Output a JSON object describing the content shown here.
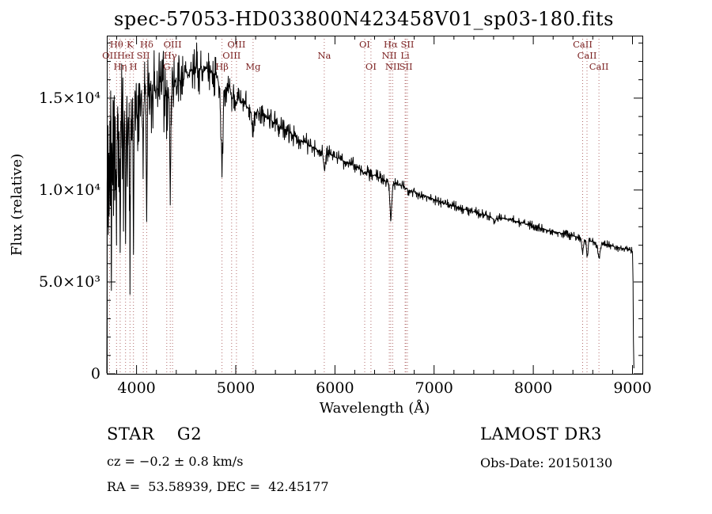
{
  "chart_data": {
    "type": "line",
    "title": "spec-57053-HD033800N423458V01_sp03-180.fits",
    "xlabel": "Wavelength (Å)",
    "ylabel": "Flux (relative)",
    "xlim": [
      3700,
      9100
    ],
    "ylim": [
      0,
      18400
    ],
    "grid": false,
    "frame": true,
    "legend": "none",
    "x_ticks": [
      {
        "value": 4000,
        "label": "4000"
      },
      {
        "value": 5000,
        "label": "5000"
      },
      {
        "value": 6000,
        "label": "6000"
      },
      {
        "value": 7000,
        "label": "7000"
      },
      {
        "value": 8000,
        "label": "8000"
      },
      {
        "value": 9000,
        "label": "9000"
      }
    ],
    "x_minor_step": 200,
    "y_ticks": [
      {
        "value": 0,
        "label": "0"
      },
      {
        "value": 5000,
        "label": "5.0×10³"
      },
      {
        "value": 10000,
        "label": "1.0×10⁴"
      },
      {
        "value": 15000,
        "label": "1.5×10⁴"
      }
    ],
    "y_minor_step": 1000,
    "curve_color": "#000000",
    "line_marker_color": "#b26b6b",
    "line_label_color": "#7a1f1f",
    "label_rows_y": [
      60,
      74,
      88
    ],
    "spectral_lines": [
      {
        "label": "Hθ",
        "wavelength": 3798,
        "row": 1
      },
      {
        "label": "K",
        "wavelength": 3934,
        "row": 1
      },
      {
        "label": "Hδ",
        "wavelength": 4102,
        "row": 1
      },
      {
        "label": "OIII",
        "wavelength": 4363,
        "row": 1
      },
      {
        "label": "OIII",
        "wavelength": 5007,
        "row": 1
      },
      {
        "label": "OI",
        "wavelength": 6300,
        "row": 1
      },
      {
        "label": "Hα",
        "wavelength": 6563,
        "row": 1
      },
      {
        "label": "SII",
        "wavelength": 6731,
        "row": 1
      },
      {
        "label": "CaII",
        "wavelength": 8498,
        "row": 1
      },
      {
        "label": "OII",
        "wavelength": 3727,
        "row": 2
      },
      {
        "label": "HeI",
        "wavelength": 3889,
        "row": 2
      },
      {
        "label": "SII",
        "wavelength": 4068,
        "row": 2
      },
      {
        "label": "Hγ",
        "wavelength": 4340,
        "row": 2
      },
      {
        "label": "OIII",
        "wavelength": 4959,
        "row": 2
      },
      {
        "label": "Na",
        "wavelength": 5893,
        "row": 2
      },
      {
        "label": "NII",
        "wavelength": 6548,
        "row": 2
      },
      {
        "label": "Li",
        "wavelength": 6708,
        "row": 2
      },
      {
        "label": "CaII",
        "wavelength": 8542,
        "row": 2
      },
      {
        "label": "Hη",
        "wavelength": 3835,
        "row": 3
      },
      {
        "label": "H",
        "wavelength": 3969,
        "row": 3
      },
      {
        "label": "G",
        "wavelength": 4305,
        "row": 3
      },
      {
        "label": "Hβ",
        "wavelength": 4861,
        "row": 3
      },
      {
        "label": "Mg",
        "wavelength": 5175,
        "row": 3
      },
      {
        "label": "OI",
        "wavelength": 6363,
        "row": 3
      },
      {
        "label": "NII",
        "wavelength": 6583,
        "row": 3
      },
      {
        "label": "SII",
        "wavelength": 6716,
        "row": 3
      },
      {
        "label": "CaII",
        "wavelength": 8662,
        "row": 3
      }
    ],
    "series": [
      {
        "name": "flux",
        "anchors": [
          [
            3700,
            300
          ],
          [
            3702,
            5200
          ],
          [
            3705,
            11000
          ],
          [
            3708,
            8000
          ],
          [
            3712,
            13600
          ],
          [
            3716,
            7500
          ],
          [
            3720,
            12200
          ],
          [
            3724,
            8600
          ],
          [
            3727,
            10500
          ],
          [
            3731,
            13800
          ],
          [
            3736,
            9200
          ],
          [
            3741,
            14200
          ],
          [
            3746,
            4800
          ],
          [
            3751,
            12600
          ],
          [
            3757,
            10500
          ],
          [
            3763,
            14500
          ],
          [
            3768,
            8600
          ],
          [
            3774,
            13600
          ],
          [
            3780,
            10000
          ],
          [
            3786,
            14000
          ],
          [
            3792,
            11000
          ],
          [
            3798,
            7000
          ],
          [
            3804,
            12600
          ],
          [
            3810,
            14800
          ],
          [
            3817,
            10200
          ],
          [
            3824,
            13200
          ],
          [
            3830,
            11200
          ],
          [
            3835,
            6400
          ],
          [
            3842,
            12600
          ],
          [
            3849,
            14800
          ],
          [
            3856,
            10600
          ],
          [
            3863,
            13800
          ],
          [
            3870,
            9900
          ],
          [
            3877,
            14300
          ],
          [
            3883,
            11900
          ],
          [
            3889,
            6900
          ],
          [
            3896,
            12900
          ],
          [
            3903,
            15200
          ],
          [
            3910,
            11400
          ],
          [
            3917,
            14300
          ],
          [
            3924,
            12400
          ],
          [
            3934,
            4300
          ],
          [
            3940,
            11900
          ],
          [
            3947,
            14300
          ],
          [
            3953,
            12900
          ],
          [
            3960,
            14800
          ],
          [
            3969,
            5900
          ],
          [
            3976,
            12900
          ],
          [
            3983,
            15300
          ],
          [
            3990,
            13400
          ],
          [
            3997,
            15800
          ],
          [
            4005,
            13900
          ],
          [
            4013,
            15300
          ],
          [
            4022,
            14400
          ],
          [
            4031,
            15800
          ],
          [
            4040,
            13900
          ],
          [
            4050,
            15300
          ],
          [
            4060,
            13400
          ],
          [
            4068,
            12000
          ],
          [
            4077,
            14800
          ],
          [
            4086,
            15800
          ],
          [
            4094,
            13900
          ],
          [
            4102,
            8300
          ],
          [
            4110,
            13900
          ],
          [
            4119,
            15300
          ],
          [
            4128,
            14400
          ],
          [
            4138,
            15800
          ],
          [
            4148,
            14400
          ],
          [
            4158,
            15300
          ],
          [
            4170,
            14900
          ],
          [
            4182,
            16000
          ],
          [
            4194,
            14900
          ],
          [
            4206,
            15800
          ],
          [
            4220,
            15100
          ],
          [
            4235,
            16200
          ],
          [
            4250,
            15300
          ],
          [
            4265,
            16000
          ],
          [
            4280,
            15100
          ],
          [
            4292,
            15600
          ],
          [
            4305,
            14000
          ],
          [
            4318,
            15500
          ],
          [
            4330,
            14900
          ],
          [
            4340,
            9300
          ],
          [
            4350,
            15000
          ],
          [
            4362,
            15900
          ],
          [
            4375,
            15400
          ],
          [
            4390,
            16100
          ],
          [
            4405,
            15600
          ],
          [
            4420,
            16300
          ],
          [
            4440,
            15800
          ],
          [
            4460,
            16400
          ],
          [
            4480,
            16000
          ],
          [
            4500,
            16500
          ],
          [
            4525,
            16200
          ],
          [
            4550,
            16600
          ],
          [
            4575,
            16300
          ],
          [
            4600,
            16700
          ],
          [
            4625,
            16400
          ],
          [
            4650,
            16700
          ],
          [
            4675,
            16400
          ],
          [
            4700,
            16600
          ],
          [
            4725,
            16300
          ],
          [
            4750,
            16500
          ],
          [
            4775,
            16200
          ],
          [
            4800,
            16300
          ],
          [
            4820,
            16000
          ],
          [
            4840,
            15500
          ],
          [
            4861,
            10700
          ],
          [
            4880,
            15400
          ],
          [
            4900,
            15600
          ],
          [
            4925,
            15300
          ],
          [
            4945,
            15500
          ],
          [
            4959,
            14900
          ],
          [
            4980,
            15300
          ],
          [
            5007,
            14600
          ],
          [
            5030,
            15000
          ],
          [
            5055,
            14700
          ],
          [
            5080,
            14800
          ],
          [
            5105,
            14600
          ],
          [
            5130,
            14400
          ],
          [
            5155,
            14200
          ],
          [
            5175,
            13000
          ],
          [
            5195,
            14200
          ],
          [
            5220,
            14300
          ],
          [
            5250,
            14100
          ],
          [
            5285,
            14000
          ],
          [
            5320,
            13900
          ],
          [
            5360,
            13800
          ],
          [
            5400,
            13600
          ],
          [
            5450,
            13400
          ],
          [
            5500,
            13300
          ],
          [
            5550,
            13100
          ],
          [
            5600,
            12900
          ],
          [
            5650,
            12700
          ],
          [
            5700,
            12600
          ],
          [
            5750,
            12400
          ],
          [
            5800,
            12250
          ],
          [
            5850,
            12100
          ],
          [
            5878,
            11900
          ],
          [
            5893,
            11100
          ],
          [
            5910,
            11900
          ],
          [
            5940,
            11950
          ],
          [
            5980,
            11850
          ],
          [
            6020,
            11750
          ],
          [
            6060,
            11650
          ],
          [
            6100,
            11550
          ],
          [
            6150,
            11450
          ],
          [
            6200,
            11300
          ],
          [
            6250,
            11150
          ],
          [
            6300,
            10900
          ],
          [
            6330,
            11000
          ],
          [
            6363,
            10750
          ],
          [
            6400,
            10800
          ],
          [
            6440,
            10700
          ],
          [
            6480,
            10600
          ],
          [
            6520,
            10500
          ],
          [
            6545,
            10300
          ],
          [
            6563,
            8300
          ],
          [
            6585,
            10300
          ],
          [
            6620,
            10350
          ],
          [
            6660,
            10250
          ],
          [
            6700,
            10150
          ],
          [
            6730,
            10050
          ],
          [
            6770,
            9950
          ],
          [
            6820,
            9850
          ],
          [
            6870,
            9750
          ],
          [
            6920,
            9650
          ],
          [
            6970,
            9550
          ],
          [
            7020,
            9450
          ],
          [
            7070,
            9350
          ],
          [
            7120,
            9250
          ],
          [
            7170,
            9150
          ],
          [
            7220,
            9100
          ],
          [
            7270,
            9000
          ],
          [
            7320,
            8950
          ],
          [
            7370,
            8850
          ],
          [
            7420,
            8800
          ],
          [
            7470,
            8700
          ],
          [
            7520,
            8650
          ],
          [
            7560,
            8550
          ],
          [
            7605,
            8400
          ],
          [
            7612,
            8200
          ],
          [
            7625,
            8450
          ],
          [
            7650,
            8500
          ],
          [
            7700,
            8450
          ],
          [
            7750,
            8400
          ],
          [
            7800,
            8350
          ],
          [
            7850,
            8250
          ],
          [
            7900,
            8200
          ],
          [
            7950,
            8100
          ],
          [
            8000,
            8050
          ],
          [
            8050,
            7950
          ],
          [
            8100,
            7900
          ],
          [
            8150,
            7800
          ],
          [
            8200,
            7750
          ],
          [
            8250,
            7700
          ],
          [
            8300,
            7600
          ],
          [
            8350,
            7550
          ],
          [
            8400,
            7500
          ],
          [
            8450,
            7450
          ],
          [
            8480,
            7350
          ],
          [
            8498,
            6500
          ],
          [
            8515,
            7300
          ],
          [
            8530,
            7250
          ],
          [
            8542,
            6350
          ],
          [
            8560,
            7250
          ],
          [
            8600,
            7200
          ],
          [
            8630,
            7150
          ],
          [
            8662,
            6300
          ],
          [
            8690,
            7100
          ],
          [
            8730,
            7050
          ],
          [
            8780,
            7000
          ],
          [
            8830,
            6900
          ],
          [
            8880,
            6850
          ],
          [
            8930,
            6800
          ],
          [
            8970,
            6750
          ],
          [
            9000,
            6650
          ],
          [
            9006,
            5000
          ],
          [
            9010,
            1800
          ],
          [
            9015,
            300
          ]
        ]
      }
    ],
    "noise": {
      "seed": 7,
      "step": 3,
      "envelope": [
        [
          3700,
          1700
        ],
        [
          4100,
          1300
        ],
        [
          4400,
          800
        ],
        [
          4700,
          550
        ],
        [
          5000,
          400
        ],
        [
          5500,
          280
        ],
        [
          6000,
          220
        ],
        [
          6500,
          170
        ],
        [
          7000,
          140
        ],
        [
          7600,
          120
        ],
        [
          8300,
          110
        ],
        [
          9015,
          100
        ]
      ]
    }
  },
  "annotations": {
    "star_class": "STAR    G2",
    "survey": "LAMOST DR3",
    "cz": "cz = −0.2 ± 0.8 km/s",
    "obs_date": "Obs-Date: 20150130",
    "ra_dec": "RA =  53.58939, DEC =  42.45177"
  }
}
